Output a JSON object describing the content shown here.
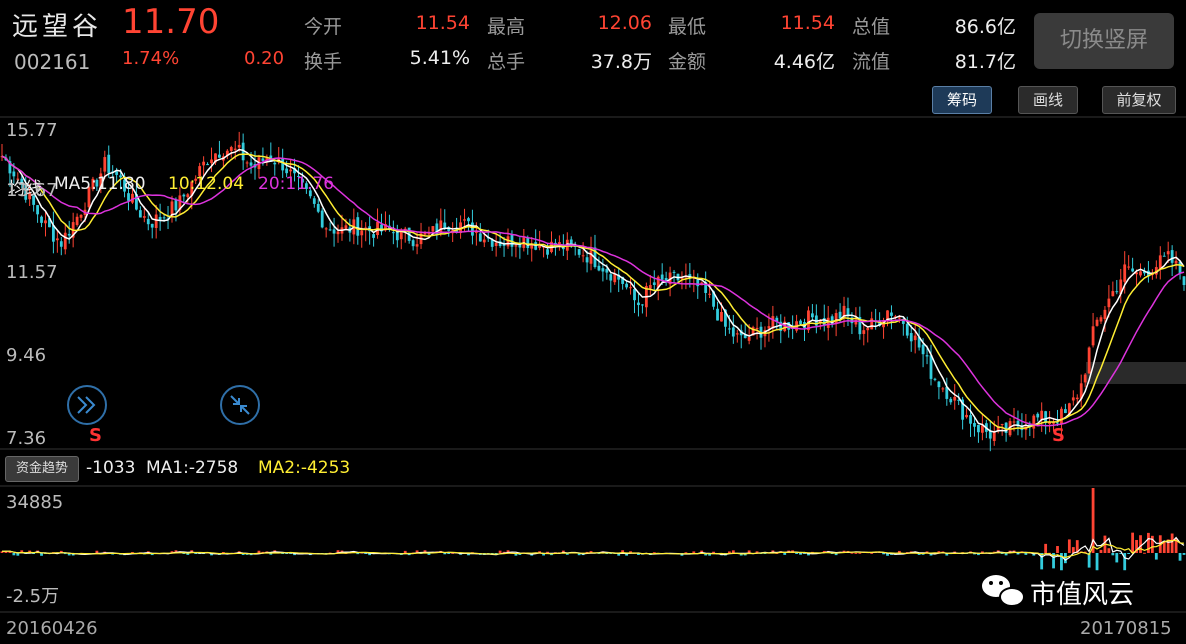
{
  "header": {
    "name": "远望谷",
    "price": "11.70",
    "code": "002161",
    "change_pct": "1.74%",
    "change_amt": "0.20",
    "stats": [
      {
        "label": "今开",
        "value": "11.54",
        "color": "red"
      },
      {
        "label": "最高",
        "value": "12.06",
        "color": "red"
      },
      {
        "label": "最低",
        "value": "11.54",
        "color": "red"
      },
      {
        "label": "总值",
        "value": "86.6亿",
        "color": "white"
      },
      {
        "label": "换手",
        "value": "5.41%",
        "color": "white"
      },
      {
        "label": "总手",
        "value": "37.8万",
        "color": "white"
      },
      {
        "label": "金额",
        "value": "4.46亿",
        "color": "white"
      },
      {
        "label": "流值",
        "value": "81.7亿",
        "color": "white"
      }
    ],
    "switch_button": "切换竖屏"
  },
  "ma_bar": {
    "title": "均线",
    "ma5": "MA5:11.80",
    "ma10": "10:12.04",
    "ma20": "20:11.76"
  },
  "toolbar": {
    "chips": "筹码",
    "draw": "画线",
    "adjust": "前复权"
  },
  "price_axis": [
    "15.77",
    "13.67",
    "11.57",
    "9.46",
    "7.36"
  ],
  "fund_axis": [
    "34885",
    "-2.5万"
  ],
  "fund_bar": {
    "badge": "资金趋势",
    "value": "-1033",
    "ma1": "MA1:-2758",
    "ma2": "MA2:-4253"
  },
  "markers": [
    "S",
    "S"
  ],
  "dates": {
    "start": "20160426",
    "end": "20170815"
  },
  "watermark": "市值风云",
  "colors": {
    "up": "#ff4433",
    "down": "#33ccdd",
    "ma5": "#ffffff",
    "ma10": "#ffee33",
    "ma20": "#dd33dd"
  },
  "chart_data": {
    "type": "candlestick",
    "x_range": [
      "20160426",
      "20170815"
    ],
    "ylim": [
      7.36,
      15.77
    ],
    "yticks": [
      15.77,
      13.67,
      11.57,
      9.46,
      7.36
    ],
    "ma_series": [
      {
        "name": "MA5",
        "last": 11.8,
        "color": "#ffffff"
      },
      {
        "name": "MA10",
        "last": 12.04,
        "color": "#ffee33"
      },
      {
        "name": "MA20",
        "last": 11.76,
        "color": "#dd33dd"
      }
    ],
    "close_path": [
      14.8,
      14.3,
      13.6,
      13.0,
      12.6,
      13.2,
      13.9,
      14.6,
      14.2,
      13.5,
      13.1,
      13.3,
      13.6,
      14.2,
      14.8,
      15.0,
      14.9,
      14.5,
      14.8,
      14.6,
      14.1,
      13.6,
      13.0,
      12.9,
      13.0,
      12.9,
      12.9,
      12.8,
      12.7,
      12.8,
      13.1,
      13.1,
      12.9,
      12.7,
      12.6,
      12.7,
      12.6,
      12.5,
      12.5,
      12.4,
      12.2,
      11.9,
      11.6,
      11.0,
      11.5,
      11.6,
      11.7,
      11.5,
      11.1,
      10.4,
      10.1,
      10.3,
      10.5,
      10.5,
      10.6,
      10.7,
      10.6,
      10.8,
      10.4,
      10.5,
      10.9,
      10.6,
      10.0,
      9.2,
      8.8,
      8.3,
      7.9,
      7.7,
      7.8,
      8.0,
      8.1,
      8.1,
      8.2,
      8.9,
      10.5,
      11.2,
      11.9,
      11.8,
      12.0,
      12.2,
      11.7
    ],
    "fund_flow": {
      "ylim": [
        -25000,
        34885
      ],
      "last": -1033,
      "ma1": -2758,
      "ma2": -4253
    }
  }
}
